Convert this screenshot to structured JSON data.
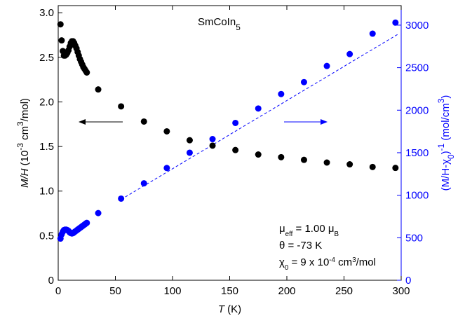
{
  "chart_data": {
    "type": "scatter",
    "title": [
      {
        "text": "SmCoIn"
      },
      {
        "text": "5",
        "style": "sub"
      }
    ],
    "xlabel": [
      {
        "text": "T",
        "style": "italic"
      },
      {
        "text": " (K)"
      }
    ],
    "ylabel": [
      {
        "text": "M/H",
        "style": "italic"
      },
      {
        "text": " (10"
      },
      {
        "text": "-3",
        "style": "sup"
      },
      {
        "text": " cm"
      },
      {
        "text": "3",
        "style": "sup"
      },
      {
        "text": "/mol)"
      }
    ],
    "y2label": [
      {
        "text": "(M/H-χ"
      },
      {
        "text": "0",
        "style": "sub"
      },
      {
        "text": ")"
      },
      {
        "text": "-1",
        "style": "sup"
      },
      {
        "text": " (mol/cm"
      },
      {
        "text": "3",
        "style": "sup"
      },
      {
        "text": ")"
      }
    ],
    "annotations": [
      [
        {
          "text": "μ"
        },
        {
          "text": "eff",
          "style": "sub"
        },
        {
          "text": " = 1.00 μ"
        },
        {
          "text": "B",
          "style": "sub"
        }
      ],
      [
        {
          "text": "θ = -73 K"
        }
      ],
      [
        {
          "text": "χ"
        },
        {
          "text": "0",
          "style": "sub"
        },
        {
          "text": " = 9 x 10"
        },
        {
          "text": "-4",
          "style": "sup"
        },
        {
          "text": " cm"
        },
        {
          "text": "3",
          "style": "sup"
        },
        {
          "text": "/mol"
        }
      ]
    ],
    "xlim": [
      0,
      300
    ],
    "xticks": [
      0,
      50,
      100,
      150,
      200,
      250,
      300
    ],
    "ylim": [
      0,
      3.08
    ],
    "yticks": [
      0,
      0.5,
      {
        "value": 1,
        "label": "1.0"
      },
      1.5,
      {
        "value": 2,
        "label": "2.0"
      },
      2.5,
      {
        "value": 3,
        "label": "3.0"
      }
    ],
    "y2lim": [
      0,
      3230
    ],
    "y2ticks": [
      0,
      500,
      1000,
      1500,
      2000,
      2500,
      3000
    ],
    "series": [
      {
        "color": "#000000",
        "x": [
          2,
          3,
          4,
          5,
          6,
          7,
          8,
          9,
          10,
          11,
          12,
          13,
          14,
          15,
          16,
          17,
          18,
          19,
          20,
          21,
          22,
          23,
          24,
          25,
          35,
          55,
          75,
          95,
          115,
          135,
          155,
          175,
          195,
          215,
          235,
          255,
          275,
          295
        ],
        "values": [
          2.87,
          2.69,
          2.57,
          2.52,
          2.52,
          2.53,
          2.55,
          2.58,
          2.62,
          2.66,
          2.68,
          2.68,
          2.66,
          2.63,
          2.6,
          2.56,
          2.52,
          2.48,
          2.45,
          2.42,
          2.39,
          2.37,
          2.35,
          2.33,
          2.14,
          1.95,
          1.78,
          1.67,
          1.57,
          1.51,
          1.46,
          1.41,
          1.38,
          1.35,
          1.32,
          1.3,
          1.27,
          1.26
        ]
      },
      {
        "color": "#0000ff",
        "axis": "y2",
        "x": [
          2,
          3,
          4,
          5,
          6,
          7,
          8,
          9,
          10,
          11,
          12,
          13,
          14,
          15,
          16,
          17,
          18,
          19,
          20,
          21,
          22,
          23,
          24,
          25,
          35,
          55,
          75,
          95,
          115,
          135,
          155,
          175,
          195,
          215,
          235,
          255,
          275,
          295
        ],
        "values": [
          490,
          540,
          570,
          590,
          595,
          595,
          590,
          580,
          565,
          555,
          550,
          555,
          565,
          575,
          585,
          595,
          605,
          615,
          625,
          635,
          645,
          655,
          665,
          675,
          790,
          960,
          1140,
          1320,
          1500,
          1660,
          1850,
          2020,
          2190,
          2330,
          2520,
          2660,
          2900,
          3030
        ]
      }
    ],
    "fit": {
      "color": "#0000ff",
      "axis": "y2",
      "x": [
        55,
        298
      ],
      "values": [
        950,
        2900
      ]
    }
  }
}
